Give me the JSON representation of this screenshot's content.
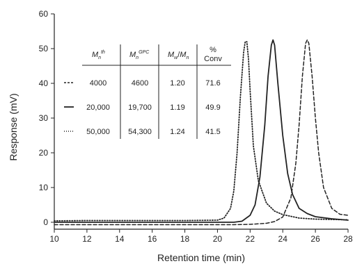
{
  "chart_data": {
    "type": "line",
    "xlabel": "Retention time (min)",
    "ylabel": "Response (mV)",
    "xlim": [
      10,
      28
    ],
    "ylim": [
      -2,
      60
    ],
    "xticks": [
      "10",
      "12",
      "14",
      "16",
      "18",
      "20",
      "22",
      "24",
      "26",
      "28"
    ],
    "yticks": [
      "0",
      "10",
      "20",
      "30",
      "40",
      "50",
      "60"
    ],
    "grid": false,
    "series": [
      {
        "style": "dashed",
        "x": [
          10,
          12,
          14,
          16,
          18,
          20,
          21,
          22,
          23,
          23.5,
          24,
          24.5,
          24.8,
          25,
          25.2,
          25.4,
          25.5,
          25.6,
          25.8,
          26,
          26.2,
          26.5,
          27,
          27.5,
          28
        ],
        "y": [
          -0.7,
          -0.7,
          -0.7,
          -0.7,
          -0.7,
          -0.7,
          -0.7,
          -0.6,
          -0.3,
          0.2,
          1.5,
          7,
          17,
          28,
          42,
          51.5,
          52.5,
          51.5,
          42,
          30,
          20,
          10,
          4,
          2.3,
          2.0
        ]
      },
      {
        "style": "solid",
        "x": [
          10,
          12,
          14,
          16,
          18,
          20,
          21,
          21.5,
          22,
          22.3,
          22.6,
          22.9,
          23.1,
          23.3,
          23.4,
          23.5,
          23.7,
          24,
          24.3,
          24.6,
          25,
          25.5,
          26,
          27,
          28
        ],
        "y": [
          0,
          0,
          0,
          0,
          0,
          0,
          0,
          0.3,
          2,
          5,
          13,
          28,
          42,
          51,
          52.5,
          51,
          40,
          25,
          14,
          8,
          4,
          2.5,
          1.6,
          1.0,
          0.6
        ]
      },
      {
        "style": "dotted",
        "x": [
          10,
          12,
          14,
          16,
          18,
          20,
          20.4,
          20.8,
          21,
          21.2,
          21.4,
          21.6,
          21.7,
          21.8,
          21.9,
          22,
          22.2,
          22.5,
          23,
          23.5,
          24,
          25,
          26,
          27,
          28
        ],
        "y": [
          0.4,
          0.5,
          0.5,
          0.5,
          0.5,
          0.6,
          1.2,
          4,
          9,
          20,
          36,
          49,
          52,
          52,
          47,
          38,
          22,
          12,
          5.5,
          3.2,
          2.2,
          1.2,
          0.9,
          0.8,
          0.7
        ]
      }
    ]
  },
  "table": {
    "headers": {
      "mn_th_main": "M",
      "mn_th_sub": "n",
      "mn_th_sup": "th",
      "mn_gpc_main": "M",
      "mn_gpc_sub": "n",
      "mn_gpc_sup": "GPC",
      "pdi_m1": "M",
      "pdi_s1": "w",
      "pdi_slash": "/",
      "pdi_m2": "M",
      "pdi_s2": "n",
      "conv_line1": "%",
      "conv_line2": "Conv"
    },
    "rows": [
      {
        "style": "dashed",
        "mn_th": "4000",
        "mn_gpc": "4600",
        "pdi": "1.20",
        "conv": "71.6"
      },
      {
        "style": "solid",
        "mn_th": "20,000",
        "mn_gpc": "19,700",
        "pdi": "1.19",
        "conv": "49.9"
      },
      {
        "style": "dotted",
        "mn_th": "50,000",
        "mn_gpc": "54,300",
        "pdi": "1.24",
        "conv": "41.5"
      }
    ]
  }
}
